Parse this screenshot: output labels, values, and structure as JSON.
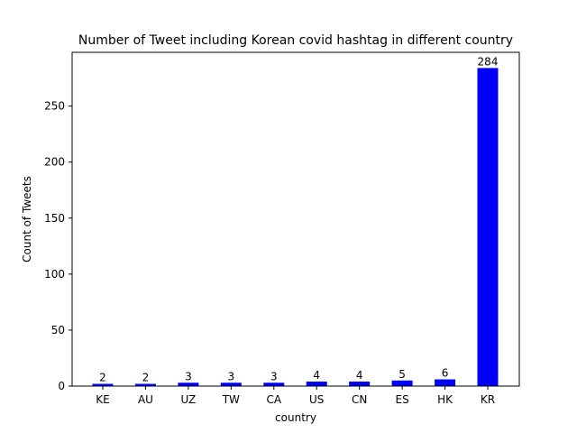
{
  "chart_data": {
    "type": "bar",
    "title": "Number of Tweet including Korean covid hashtag in different country",
    "xlabel": "country",
    "ylabel": "Count of Tweets",
    "categories": [
      "KE",
      "AU",
      "UZ",
      "TW",
      "CA",
      "US",
      "CN",
      "ES",
      "HK",
      "KR"
    ],
    "values": [
      2,
      2,
      3,
      3,
      3,
      4,
      4,
      5,
      6,
      284
    ],
    "data_labels": [
      "2",
      "2",
      "3",
      "3",
      "3",
      "4",
      "4",
      "5",
      "6",
      "284"
    ],
    "ylim": [
      0,
      298
    ],
    "yticks": [
      0,
      50,
      100,
      150,
      200,
      250
    ],
    "ytick_labels": [
      "0",
      "50",
      "100",
      "150",
      "200",
      "250"
    ],
    "bar_color": "#0000ff",
    "grid": false,
    "legend": "none"
  }
}
